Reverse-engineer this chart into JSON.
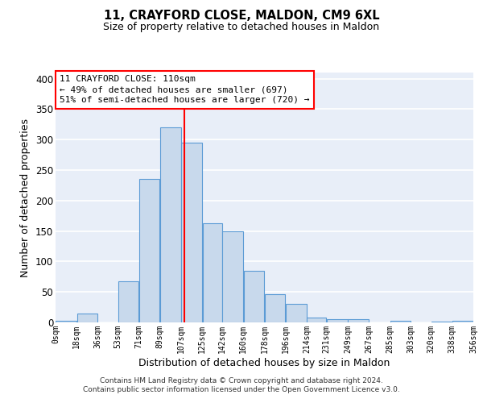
{
  "title": "11, CRAYFORD CLOSE, MALDON, CM9 6XL",
  "subtitle": "Size of property relative to detached houses in Maldon",
  "xlabel": "Distribution of detached houses by size in Maldon",
  "ylabel": "Number of detached properties",
  "bar_color": "#c8d9ec",
  "bar_edge_color": "#5b9bd5",
  "background_color": "#e8eef8",
  "grid_color": "white",
  "vline_x": 110,
  "vline_color": "red",
  "annotation_line1": "11 CRAYFORD CLOSE: 110sqm",
  "annotation_line2": "← 49% of detached houses are smaller (697)",
  "annotation_line3": "51% of semi-detached houses are larger (720) →",
  "footer": "Contains HM Land Registry data © Crown copyright and database right 2024.\nContains public sector information licensed under the Open Government Licence v3.0.",
  "bin_edges": [
    0,
    18,
    36,
    53,
    71,
    89,
    107,
    125,
    142,
    160,
    178,
    196,
    214,
    231,
    249,
    267,
    285,
    303,
    320,
    338,
    356
  ],
  "bar_heights": [
    3,
    15,
    0,
    68,
    235,
    320,
    295,
    163,
    149,
    85,
    46,
    30,
    8,
    5,
    5,
    0,
    3,
    0,
    1,
    3
  ],
  "ylim": [
    0,
    410
  ],
  "xlim": [
    0,
    356
  ],
  "yticks": [
    0,
    50,
    100,
    150,
    200,
    250,
    300,
    350,
    400
  ],
  "tick_labels": [
    "0sqm",
    "18sqm",
    "36sqm",
    "53sqm",
    "71sqm",
    "89sqm",
    "107sqm",
    "125sqm",
    "142sqm",
    "160sqm",
    "178sqm",
    "196sqm",
    "214sqm",
    "231sqm",
    "249sqm",
    "267sqm",
    "285sqm",
    "303sqm",
    "320sqm",
    "338sqm",
    "356sqm"
  ]
}
